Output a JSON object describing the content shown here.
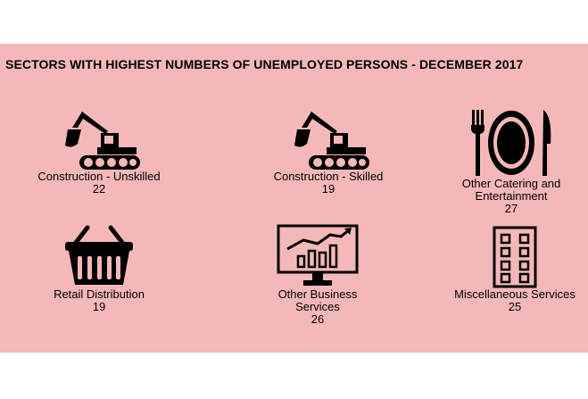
{
  "title": "SECTORS WITH HIGHEST NUMBERS OF UNEMPLOYED PERSONS - DECEMBER 2017",
  "colors": {
    "panel_background": "#f5b8b8",
    "icon": "#000000"
  },
  "sectors": [
    {
      "icon": "excavator-icon",
      "label": "Construction - Unskilled",
      "value": "22"
    },
    {
      "icon": "excavator-icon",
      "label": "Construction - Skilled",
      "value": "19"
    },
    {
      "icon": "fork-plate-knife-icon",
      "label": "Other Catering and Entertainment",
      "value": "27"
    },
    {
      "icon": "shopping-basket-icon",
      "label": "Retail Distribution",
      "value": "19"
    },
    {
      "icon": "monitor-chart-icon",
      "label": "Other Business Services",
      "value": "26"
    },
    {
      "icon": "office-building-icon",
      "label": "Miscellaneous Services",
      "value": "25"
    }
  ]
}
